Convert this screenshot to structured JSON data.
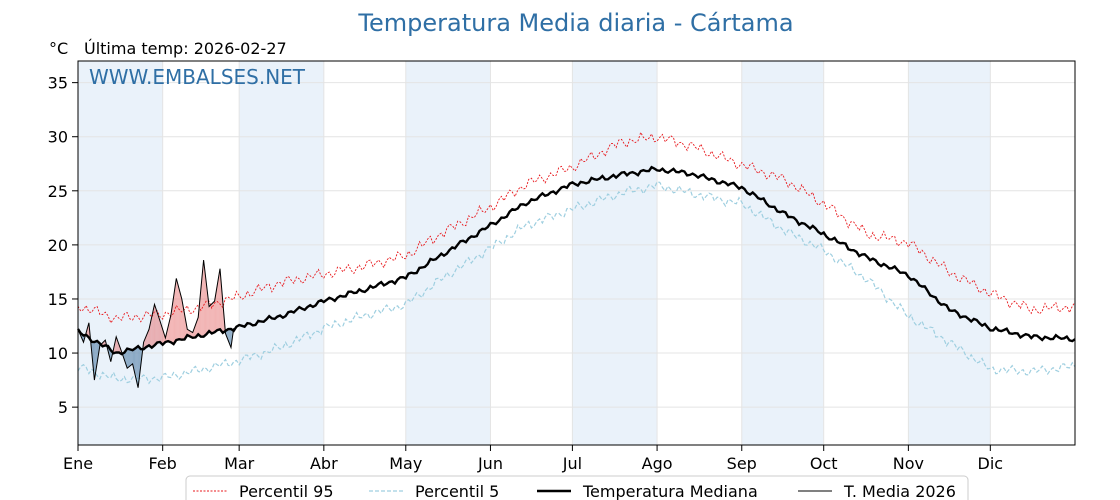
{
  "chart_data": {
    "type": "line",
    "title": "Temperatura Media diaria - Cártama",
    "ylabel": "°C",
    "subtitle": "Última temp: 2026-02-27",
    "watermark": "WWW.EMBALSES.NET",
    "xlim": [
      1,
      366
    ],
    "ylim": [
      1.5,
      37
    ],
    "yticks": [
      5,
      10,
      15,
      20,
      25,
      30,
      35
    ],
    "month_labels": [
      "Ene",
      "Feb",
      "Mar",
      "Abr",
      "May",
      "Jun",
      "Jul",
      "Ago",
      "Sep",
      "Oct",
      "Nov",
      "Dic"
    ],
    "month_starts": [
      1,
      32,
      60,
      91,
      121,
      152,
      182,
      213,
      244,
      274,
      305,
      335
    ],
    "shaded_months": [
      0,
      2,
      4,
      6,
      8,
      10
    ],
    "colors": {
      "p95": "#e8191d",
      "p5": "#9fcfe0",
      "median": "#000000",
      "current": "#000000",
      "above": "#e87474",
      "below": "#6f95b7",
      "band": "#eaf2fa",
      "grid": "#e4e4e4"
    },
    "legend": [
      "Percentil 95",
      "Percentil 5",
      "Temperatura Mediana",
      "T. Media 2026"
    ],
    "legend_position": "bottom-center",
    "series": [
      {
        "name": "Percentil 95",
        "x": [
          1,
          15,
          32,
          45,
          60,
          75,
          91,
          105,
          121,
          135,
          152,
          165,
          182,
          200,
          213,
          225,
          244,
          260,
          274,
          290,
          305,
          320,
          335,
          350,
          366
        ],
        "values": [
          14.4,
          13.2,
          13.6,
          14.2,
          15.2,
          16.5,
          17.3,
          18.0,
          19.0,
          21.2,
          23.5,
          25.6,
          27.2,
          29.5,
          30.0,
          29.2,
          27.4,
          26.0,
          23.8,
          21.0,
          20.2,
          17.5,
          15.5,
          14.0,
          14.3
        ]
      },
      {
        "name": "Percentil 5",
        "x": [
          1,
          15,
          32,
          45,
          60,
          75,
          91,
          105,
          121,
          135,
          152,
          165,
          182,
          200,
          213,
          225,
          244,
          260,
          274,
          290,
          305,
          320,
          335,
          350,
          366
        ],
        "values": [
          8.7,
          7.6,
          7.7,
          8.4,
          9.3,
          10.5,
          12.3,
          13.4,
          14.5,
          17.0,
          19.7,
          21.8,
          23.3,
          24.8,
          25.5,
          24.8,
          23.8,
          21.3,
          19.5,
          16.8,
          13.4,
          11.0,
          8.5,
          8.3,
          8.8
        ]
      },
      {
        "name": "Temperatura Mediana",
        "x": [
          1,
          15,
          32,
          45,
          60,
          75,
          91,
          105,
          121,
          135,
          152,
          165,
          182,
          200,
          213,
          225,
          244,
          260,
          274,
          290,
          305,
          320,
          335,
          350,
          366
        ],
        "values": [
          12.0,
          10.0,
          10.9,
          11.6,
          12.4,
          13.4,
          14.8,
          15.8,
          17.0,
          19.2,
          21.8,
          23.9,
          25.6,
          26.5,
          27.0,
          26.6,
          25.3,
          22.8,
          21.0,
          18.8,
          17.2,
          14.0,
          12.3,
          11.5,
          11.3
        ]
      },
      {
        "name": "T. Media 2026",
        "x": [
          1,
          3,
          5,
          7,
          9,
          11,
          13,
          15,
          17,
          19,
          21,
          23,
          25,
          27,
          29,
          31,
          33,
          35,
          37,
          39,
          41,
          43,
          45,
          47,
          49,
          51,
          53,
          55,
          57,
          58
        ],
        "values": [
          12.2,
          11.0,
          12.8,
          7.5,
          10.7,
          11.2,
          9.2,
          11.5,
          10.1,
          8.6,
          9.0,
          6.8,
          11.0,
          12.2,
          14.5,
          13.0,
          11.4,
          13.5,
          16.9,
          15.0,
          12.2,
          11.9,
          13.3,
          18.6,
          14.3,
          14.8,
          17.8,
          11.8,
          10.5,
          12.3
        ]
      }
    ]
  }
}
